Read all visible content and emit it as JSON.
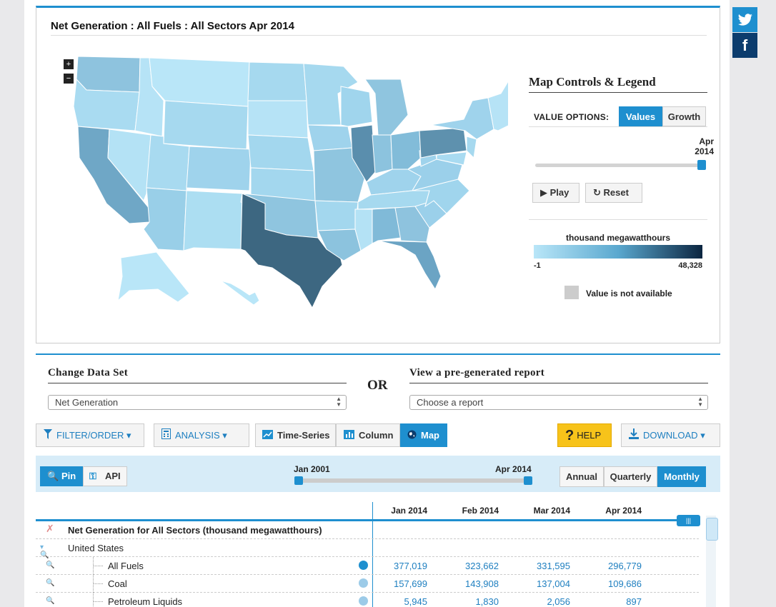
{
  "map": {
    "title": "Net Generation : All Fuels : All Sectors Apr 2014",
    "zoom_in": "+",
    "zoom_out": "−"
  },
  "legend": {
    "title": "Map Controls & Legend",
    "value_options_label": "VALUE OPTIONS:",
    "values_btn": "Values",
    "growth_btn": "Growth",
    "slider_month": "Apr",
    "slider_year": "2014",
    "play": "Play",
    "reset": "Reset",
    "unit": "thousand megawatthours",
    "min": "-1",
    "max": "48,328",
    "na": "Value is not available",
    "colors": {
      "low": "#b9e6f8",
      "high": "#0b2540",
      "accent": "#1e8fcf"
    }
  },
  "dataset": {
    "change_heading": "Change Data Set",
    "or": "OR",
    "report_heading": "View a pre-generated report",
    "dataset_value": "Net Generation",
    "report_placeholder": "Choose a report"
  },
  "toolbar": {
    "filter": "FILTER/ORDER",
    "analysis": "ANALYSIS",
    "timeseries": "Time-Series",
    "column": "Column",
    "map": "Map",
    "help": "HELP",
    "download": "DOWNLOAD"
  },
  "range": {
    "pin": "Pin",
    "api": "API",
    "start": "Jan 2001",
    "end": "Apr 2014",
    "annual": "Annual",
    "quarterly": "Quarterly",
    "monthly": "Monthly"
  },
  "table": {
    "columns": [
      "Jan 2014",
      "Feb 2014",
      "Mar 2014",
      "Apr 2014"
    ],
    "group_title": "Net Generation for All Sectors (thousand megawatthours)",
    "region": "United States",
    "rows": [
      {
        "label": "All Fuels",
        "values": [
          "377,019",
          "323,662",
          "331,595",
          "296,779"
        ]
      },
      {
        "label": "Coal",
        "values": [
          "157,699",
          "143,908",
          "137,004",
          "109,686"
        ]
      },
      {
        "label": "Petroleum Liquids",
        "values": [
          "5,945",
          "1,830",
          "2,056",
          "897"
        ]
      }
    ]
  },
  "social": {
    "twitter": "twitter-icon",
    "facebook": "facebook-icon"
  }
}
